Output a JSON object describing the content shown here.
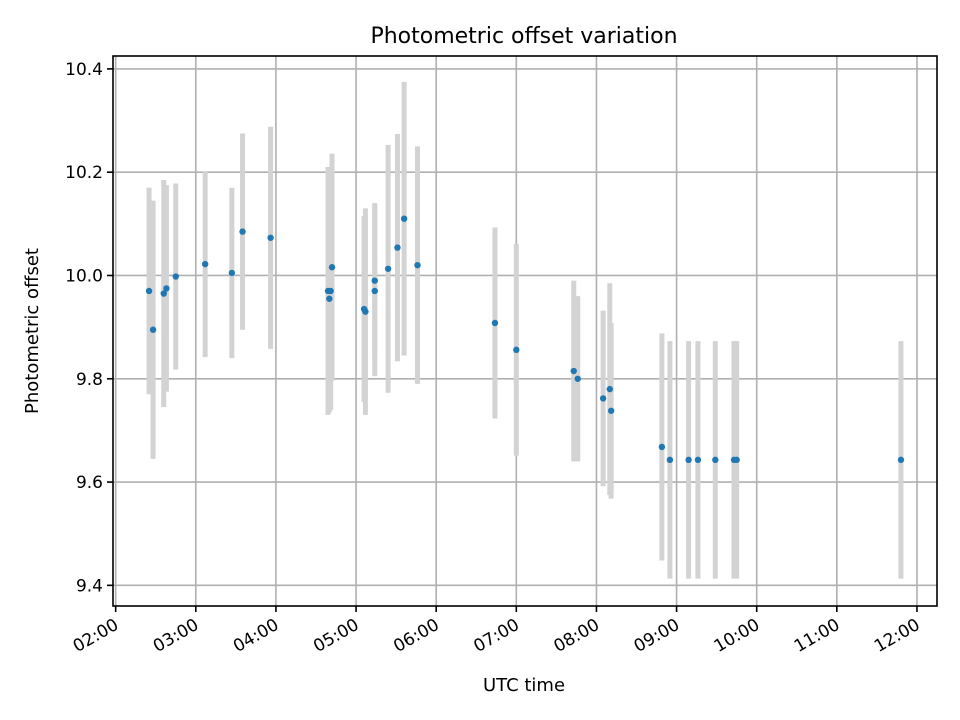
{
  "chart_data": {
    "type": "scatter",
    "title": "Photometric offset variation",
    "xlabel": "UTC time",
    "ylabel": "Photometric offset",
    "x_ticks": [
      "02:00",
      "03:00",
      "04:00",
      "05:00",
      "06:00",
      "07:00",
      "08:00",
      "09:00",
      "10:00",
      "11:00",
      "12:00"
    ],
    "y_ticks": [
      "9.4",
      "9.6",
      "9.8",
      "10.0",
      "10.2",
      "10.4"
    ],
    "xlim": [
      "01:58",
      "12:15"
    ],
    "ylim": [
      9.36,
      10.425
    ],
    "grid": true,
    "marker_color": "#1f77b4",
    "errorbar_color": "#d3d3d3",
    "points": [
      {
        "x": "02:25",
        "y": 9.97,
        "err": 0.2
      },
      {
        "x": "02:28",
        "y": 9.895,
        "err": 0.25
      },
      {
        "x": "02:36",
        "y": 9.965,
        "err": 0.22
      },
      {
        "x": "02:38",
        "y": 9.975,
        "err": 0.2
      },
      {
        "x": "02:45",
        "y": 9.998,
        "err": 0.18
      },
      {
        "x": "03:07",
        "y": 10.022,
        "err": 0.18
      },
      {
        "x": "03:27",
        "y": 10.005,
        "err": 0.165
      },
      {
        "x": "03:35",
        "y": 10.085,
        "err": 0.19
      },
      {
        "x": "03:56",
        "y": 10.073,
        "err": 0.215
      },
      {
        "x": "04:39",
        "y": 9.97,
        "err": 0.24
      },
      {
        "x": "04:40",
        "y": 9.955,
        "err": 0.22
      },
      {
        "x": "04:41",
        "y": 9.97,
        "err": 0.23
      },
      {
        "x": "04:42",
        "y": 10.016,
        "err": 0.22
      },
      {
        "x": "05:06",
        "y": 9.935,
        "err": 0.18
      },
      {
        "x": "05:07",
        "y": 9.93,
        "err": 0.2
      },
      {
        "x": "05:14",
        "y": 9.97,
        "err": 0.165
      },
      {
        "x": "05:14",
        "y": 9.99,
        "err": 0.15
      },
      {
        "x": "05:24",
        "y": 10.013,
        "err": 0.24
      },
      {
        "x": "05:31",
        "y": 10.054,
        "err": 0.22
      },
      {
        "x": "05:36",
        "y": 10.11,
        "err": 0.265
      },
      {
        "x": "05:46",
        "y": 10.02,
        "err": 0.23
      },
      {
        "x": "06:44",
        "y": 9.908,
        "err": 0.185
      },
      {
        "x": "07:00",
        "y": 9.856,
        "err": 0.205
      },
      {
        "x": "07:43",
        "y": 9.815,
        "err": 0.175
      },
      {
        "x": "07:46",
        "y": 9.8,
        "err": 0.16
      },
      {
        "x": "08:05",
        "y": 9.762,
        "err": 0.17
      },
      {
        "x": "08:10",
        "y": 9.78,
        "err": 0.205
      },
      {
        "x": "08:11",
        "y": 9.738,
        "err": 0.17
      },
      {
        "x": "08:49",
        "y": 9.668,
        "err": 0.22
      },
      {
        "x": "08:55",
        "y": 9.643,
        "err": 0.23
      },
      {
        "x": "09:09",
        "y": 9.643,
        "err": 0.23
      },
      {
        "x": "09:16",
        "y": 9.643,
        "err": 0.23
      },
      {
        "x": "09:29",
        "y": 9.643,
        "err": 0.23
      },
      {
        "x": "09:43",
        "y": 9.643,
        "err": 0.23
      },
      {
        "x": "09:45",
        "y": 9.643,
        "err": 0.23
      },
      {
        "x": "11:48",
        "y": 9.643,
        "err": 0.23
      }
    ]
  }
}
